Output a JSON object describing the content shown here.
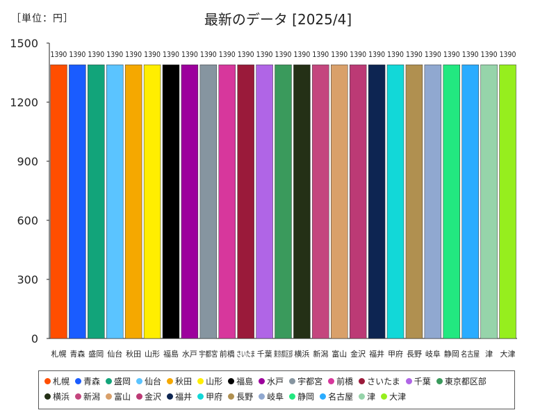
{
  "header": {
    "unit": "［単位：円］",
    "title": "最新のデータ [2025/4]"
  },
  "chart_data": {
    "type": "bar",
    "title": "最新のデータ [2025/4]",
    "unit": "［単位：円］",
    "ylim": [
      0,
      1500
    ],
    "yticks": [
      0,
      300,
      600,
      900,
      1200,
      1500
    ],
    "grid": false,
    "legend": "bottom",
    "value_label": "1390",
    "categories": [
      "札幌",
      "青森",
      "盛岡",
      "仙台",
      "秋田",
      "山形",
      "福島",
      "水戸",
      "宇都宮",
      "前橋",
      "さいたま",
      "千葉",
      "東京都区部",
      "横浜",
      "新潟",
      "富山",
      "金沢",
      "福井",
      "甲府",
      "長野",
      "岐阜",
      "静岡",
      "名古屋",
      "津",
      "大津"
    ],
    "values": [
      1390,
      1390,
      1390,
      1390,
      1390,
      1390,
      1390,
      1390,
      1390,
      1390,
      1390,
      1390,
      1390,
      1390,
      1390,
      1390,
      1390,
      1390,
      1390,
      1390,
      1390,
      1390,
      1390,
      1390,
      1390
    ],
    "colors": [
      "#ff4e00",
      "#1a5cff",
      "#12a47a",
      "#5bc4ff",
      "#f5a800",
      "#ffee00",
      "#000000",
      "#9c009c",
      "#8695a0",
      "#d7379c",
      "#9a1a3a",
      "#b065e6",
      "#3a9a5c",
      "#243016",
      "#c4467e",
      "#d9a06a",
      "#bc3a75",
      "#0d2552",
      "#12d8d8",
      "#b09050",
      "#90a8d0",
      "#22e880",
      "#2aacff",
      "#96d4aa",
      "#96ee1e"
    ]
  }
}
